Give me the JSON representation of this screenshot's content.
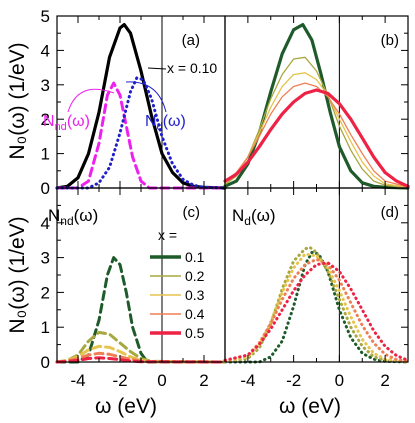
{
  "figure": {
    "y_axis_label": "N₀(ω) (1/eV)",
    "x_axis_label": "ω (eV)",
    "x_ticks": [
      "-4",
      "-2",
      "0",
      "2"
    ],
    "y_ticks": [
      "0",
      "1",
      "2",
      "3",
      "4",
      "5"
    ]
  },
  "colors": {
    "total": "#000000",
    "nondoped": "#ee22ee",
    "doped": "#1f1fcc",
    "x01": "#1f5b2a",
    "x02": "#a8a840",
    "x03": "#e6c44f",
    "x04": "#ee7f55",
    "x05": "#ee2244"
  },
  "chart_data": [
    {
      "panel": "(a)",
      "type": "line",
      "xlim": [
        -5,
        3
      ],
      "ylim": [
        0,
        5
      ],
      "annotation_x": "x = 0.10",
      "label_nnd": "Nₙd(ω)",
      "label_nd": "Nd(ω)",
      "series": [
        {
          "name": "",
          "style": "solid",
          "color": "total",
          "x": [
            -5,
            -4.5,
            -4,
            -3.5,
            -3,
            -2.5,
            -2,
            -1.8,
            -1.5,
            -1,
            -0.5,
            0,
            0.5,
            1,
            1.5,
            2,
            3
          ],
          "y": [
            0,
            0.05,
            0.3,
            1.0,
            2.2,
            3.8,
            4.65,
            4.75,
            4.5,
            3.4,
            2.1,
            1.0,
            0.45,
            0.15,
            0.05,
            0.02,
            0
          ]
        },
        {
          "name": "Nₙd(ω)",
          "style": "dashed",
          "color": "nondoped",
          "x": [
            -5,
            -4,
            -3.5,
            -3,
            -2.6,
            -2.3,
            -2,
            -1.7,
            -1.4,
            -1,
            -0.6,
            3
          ],
          "y": [
            0,
            0,
            0.2,
            1.3,
            2.7,
            3.05,
            2.7,
            1.8,
            0.9,
            0.2,
            0,
            0
          ]
        },
        {
          "name": "Nd(ω)",
          "style": "dotted",
          "color": "doped",
          "x": [
            -5,
            -3.5,
            -3,
            -2.5,
            -2,
            -1.5,
            -1.2,
            -0.9,
            -0.5,
            0,
            0.5,
            1,
            1.5,
            2,
            3
          ],
          "y": [
            0,
            0,
            0.15,
            0.6,
            1.6,
            2.8,
            3.2,
            3.15,
            2.6,
            1.5,
            0.7,
            0.25,
            0.08,
            0.02,
            0
          ]
        }
      ]
    },
    {
      "panel": "(b)",
      "type": "line",
      "xlim": [
        -5,
        3
      ],
      "ylim": [
        0,
        5
      ],
      "series": [
        {
          "name": "0.1",
          "color": "x01",
          "style": "solid",
          "x": [
            -5,
            -4.5,
            -4,
            -3.5,
            -3,
            -2.5,
            -2,
            -1.6,
            -1.2,
            -0.8,
            -0.4,
            0,
            0.5,
            1,
            1.5,
            2,
            3
          ],
          "y": [
            0.05,
            0.2,
            0.7,
            1.6,
            2.8,
            3.9,
            4.6,
            4.75,
            4.3,
            3.3,
            2.2,
            1.2,
            0.5,
            0.15,
            0.05,
            0.02,
            0
          ]
        },
        {
          "name": "0.2",
          "color": "x02",
          "style": "solid",
          "x": [
            -5,
            -4.5,
            -4,
            -3.5,
            -3,
            -2.5,
            -2,
            -1.5,
            -1,
            -0.5,
            0,
            0.5,
            1,
            1.5,
            2,
            3
          ],
          "y": [
            0.1,
            0.35,
            0.9,
            1.7,
            2.6,
            3.3,
            3.75,
            3.8,
            3.4,
            2.7,
            1.8,
            1.1,
            0.55,
            0.2,
            0.08,
            0
          ]
        },
        {
          "name": "0.3",
          "color": "x03",
          "style": "solid",
          "x": [
            -5,
            -4.5,
            -4,
            -3.5,
            -3,
            -2.5,
            -2,
            -1.5,
            -1,
            -0.5,
            0,
            0.5,
            1,
            1.5,
            2,
            3
          ],
          "y": [
            0.15,
            0.4,
            0.9,
            1.6,
            2.35,
            2.95,
            3.3,
            3.35,
            3.15,
            2.7,
            2.0,
            1.35,
            0.75,
            0.35,
            0.12,
            0.02
          ]
        },
        {
          "name": "0.4",
          "color": "x04",
          "style": "solid",
          "x": [
            -5,
            -4.5,
            -4,
            -3.5,
            -3,
            -2.5,
            -2,
            -1.5,
            -1,
            -0.5,
            0,
            0.5,
            1,
            1.5,
            2,
            3
          ],
          "y": [
            0.2,
            0.45,
            0.9,
            1.5,
            2.15,
            2.65,
            2.95,
            3.05,
            2.95,
            2.65,
            2.15,
            1.55,
            1.0,
            0.5,
            0.2,
            0.03
          ]
        },
        {
          "name": "0.5",
          "color": "x05",
          "style": "solid",
          "x": [
            -5,
            -4.5,
            -4,
            -3.5,
            -3,
            -2.5,
            -2,
            -1.5,
            -1,
            -0.5,
            0,
            0.5,
            1,
            1.5,
            2,
            2.5,
            3
          ],
          "y": [
            0.2,
            0.4,
            0.75,
            1.2,
            1.7,
            2.15,
            2.5,
            2.75,
            2.85,
            2.75,
            2.45,
            2.0,
            1.45,
            0.9,
            0.45,
            0.2,
            0.05
          ]
        }
      ]
    },
    {
      "panel": "(c)",
      "type": "line",
      "xlim": [
        -5,
        3
      ],
      "ylim": [
        0,
        5
      ],
      "title_label": "Nₙd(ω)",
      "legend_title": "x =",
      "series": [
        {
          "name": "0.1",
          "color": "x01",
          "style": "dashed",
          "x": [
            -5,
            -4,
            -3.5,
            -3,
            -2.6,
            -2.3,
            -2,
            -1.7,
            -1.4,
            -1,
            -0.7,
            3
          ],
          "y": [
            0,
            0,
            0.2,
            1.2,
            2.5,
            3.0,
            2.8,
            2.0,
            1.0,
            0.25,
            0,
            0
          ]
        },
        {
          "name": "0.2",
          "color": "x02",
          "style": "dashed",
          "x": [
            -5,
            -4.5,
            -4,
            -3.5,
            -3,
            -2.5,
            -2,
            -1.5,
            -1,
            -0.5,
            3
          ],
          "y": [
            0,
            0.05,
            0.2,
            0.6,
            0.85,
            0.8,
            0.55,
            0.3,
            0.1,
            0.02,
            0
          ]
        },
        {
          "name": "0.3",
          "color": "x03",
          "style": "dashed",
          "x": [
            -5,
            -4.5,
            -4,
            -3.5,
            -3,
            -2.5,
            -2,
            -1.5,
            -1,
            -0.5,
            3
          ],
          "y": [
            0,
            0.05,
            0.15,
            0.35,
            0.45,
            0.42,
            0.3,
            0.15,
            0.05,
            0.01,
            0
          ]
        },
        {
          "name": "0.4",
          "color": "x04",
          "style": "dashed",
          "x": [
            -5,
            -4.5,
            -4,
            -3.5,
            -3,
            -2.5,
            -2,
            -1.5,
            -1,
            -0.5,
            3
          ],
          "y": [
            0,
            0.03,
            0.1,
            0.2,
            0.25,
            0.22,
            0.15,
            0.08,
            0.03,
            0.01,
            0
          ]
        },
        {
          "name": "0.5",
          "color": "x05",
          "style": "dashed",
          "x": [
            -5,
            -4.5,
            -4,
            -3.5,
            -3,
            -2.5,
            -2,
            -1.5,
            -1,
            3
          ],
          "y": [
            0,
            0.02,
            0.05,
            0.1,
            0.12,
            0.1,
            0.07,
            0.03,
            0.01,
            0
          ]
        }
      ]
    },
    {
      "panel": "(d)",
      "type": "line",
      "xlim": [
        -5,
        3
      ],
      "ylim": [
        0,
        5
      ],
      "title_label": "Nd(ω)",
      "series": [
        {
          "name": "0.1",
          "color": "x01",
          "style": "dotted",
          "x": [
            -5,
            -3.5,
            -3,
            -2.5,
            -2,
            -1.5,
            -1.2,
            -0.9,
            -0.5,
            0,
            0.5,
            1,
            1.5,
            2,
            3
          ],
          "y": [
            0,
            0,
            0.15,
            0.6,
            1.6,
            2.8,
            3.15,
            3.1,
            2.6,
            1.5,
            0.7,
            0.25,
            0.08,
            0.02,
            0
          ]
        },
        {
          "name": "0.2",
          "color": "x02",
          "style": "dotted",
          "x": [
            -5,
            -4,
            -3.5,
            -3,
            -2.5,
            -2,
            -1.5,
            -1.3,
            -1,
            -0.5,
            0,
            0.5,
            1,
            1.5,
            2,
            3
          ],
          "y": [
            0,
            0.1,
            0.4,
            1.1,
            2.1,
            2.9,
            3.25,
            3.3,
            3.15,
            2.6,
            1.8,
            1.0,
            0.45,
            0.15,
            0.05,
            0
          ]
        },
        {
          "name": "0.3",
          "color": "x03",
          "style": "dotted",
          "x": [
            -5,
            -4,
            -3.5,
            -3,
            -2.5,
            -2,
            -1.5,
            -1,
            -0.5,
            0,
            0.5,
            1,
            1.5,
            2,
            3
          ],
          "y": [
            0.02,
            0.15,
            0.5,
            1.15,
            2.0,
            2.7,
            3.1,
            3.05,
            2.7,
            2.05,
            1.3,
            0.65,
            0.25,
            0.08,
            0
          ]
        },
        {
          "name": "0.4",
          "color": "x04",
          "style": "dotted",
          "x": [
            -5,
            -4,
            -3.5,
            -3,
            -2.5,
            -2,
            -1.5,
            -1,
            -0.5,
            0,
            0.5,
            1,
            1.5,
            2,
            2.5,
            3
          ],
          "y": [
            0.05,
            0.2,
            0.55,
            1.1,
            1.8,
            2.4,
            2.8,
            2.95,
            2.8,
            2.35,
            1.7,
            1.05,
            0.55,
            0.22,
            0.07,
            0.02
          ]
        },
        {
          "name": "0.5",
          "color": "x05",
          "style": "dotted",
          "x": [
            -5,
            -4,
            -3.5,
            -3,
            -2.5,
            -2,
            -1.5,
            -1,
            -0.5,
            0,
            0.5,
            1,
            1.5,
            2,
            2.5,
            3
          ],
          "y": [
            0.05,
            0.2,
            0.5,
            0.95,
            1.5,
            2.05,
            2.5,
            2.8,
            2.85,
            2.6,
            2.1,
            1.5,
            0.9,
            0.45,
            0.18,
            0.05
          ]
        }
      ]
    }
  ]
}
